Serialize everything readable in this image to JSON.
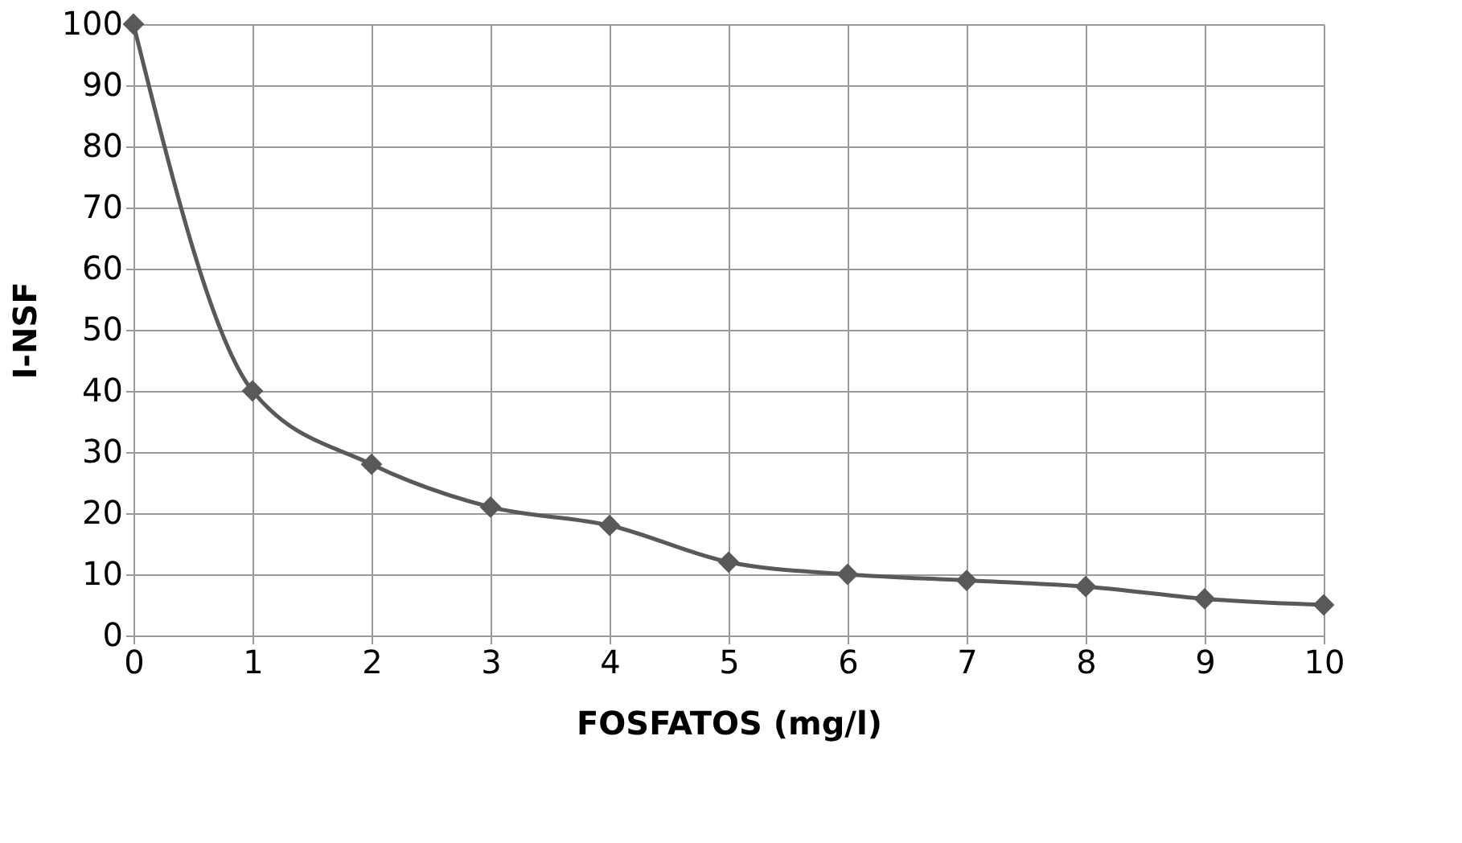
{
  "chart_data": {
    "type": "line",
    "xlabel": "FOSFATOS (mg/l)",
    "ylabel": "I-NSF",
    "x": [
      0,
      1,
      2,
      3,
      4,
      5,
      6,
      7,
      8,
      9,
      10
    ],
    "series": [
      {
        "color": "#595959",
        "values": [
          100,
          40,
          28,
          21,
          18,
          12,
          10,
          9,
          8,
          6,
          5
        ]
      }
    ],
    "xlim": [
      0,
      10
    ],
    "xticks": [
      0,
      1,
      2,
      3,
      4,
      5,
      6,
      7,
      8,
      9,
      10
    ],
    "ylim": [
      0,
      100
    ],
    "yticks": [
      0,
      10,
      20,
      30,
      40,
      50,
      60,
      70,
      80,
      90,
      100
    ],
    "grid": true,
    "marker": "diamond",
    "line_style": "solid",
    "legend": false
  }
}
